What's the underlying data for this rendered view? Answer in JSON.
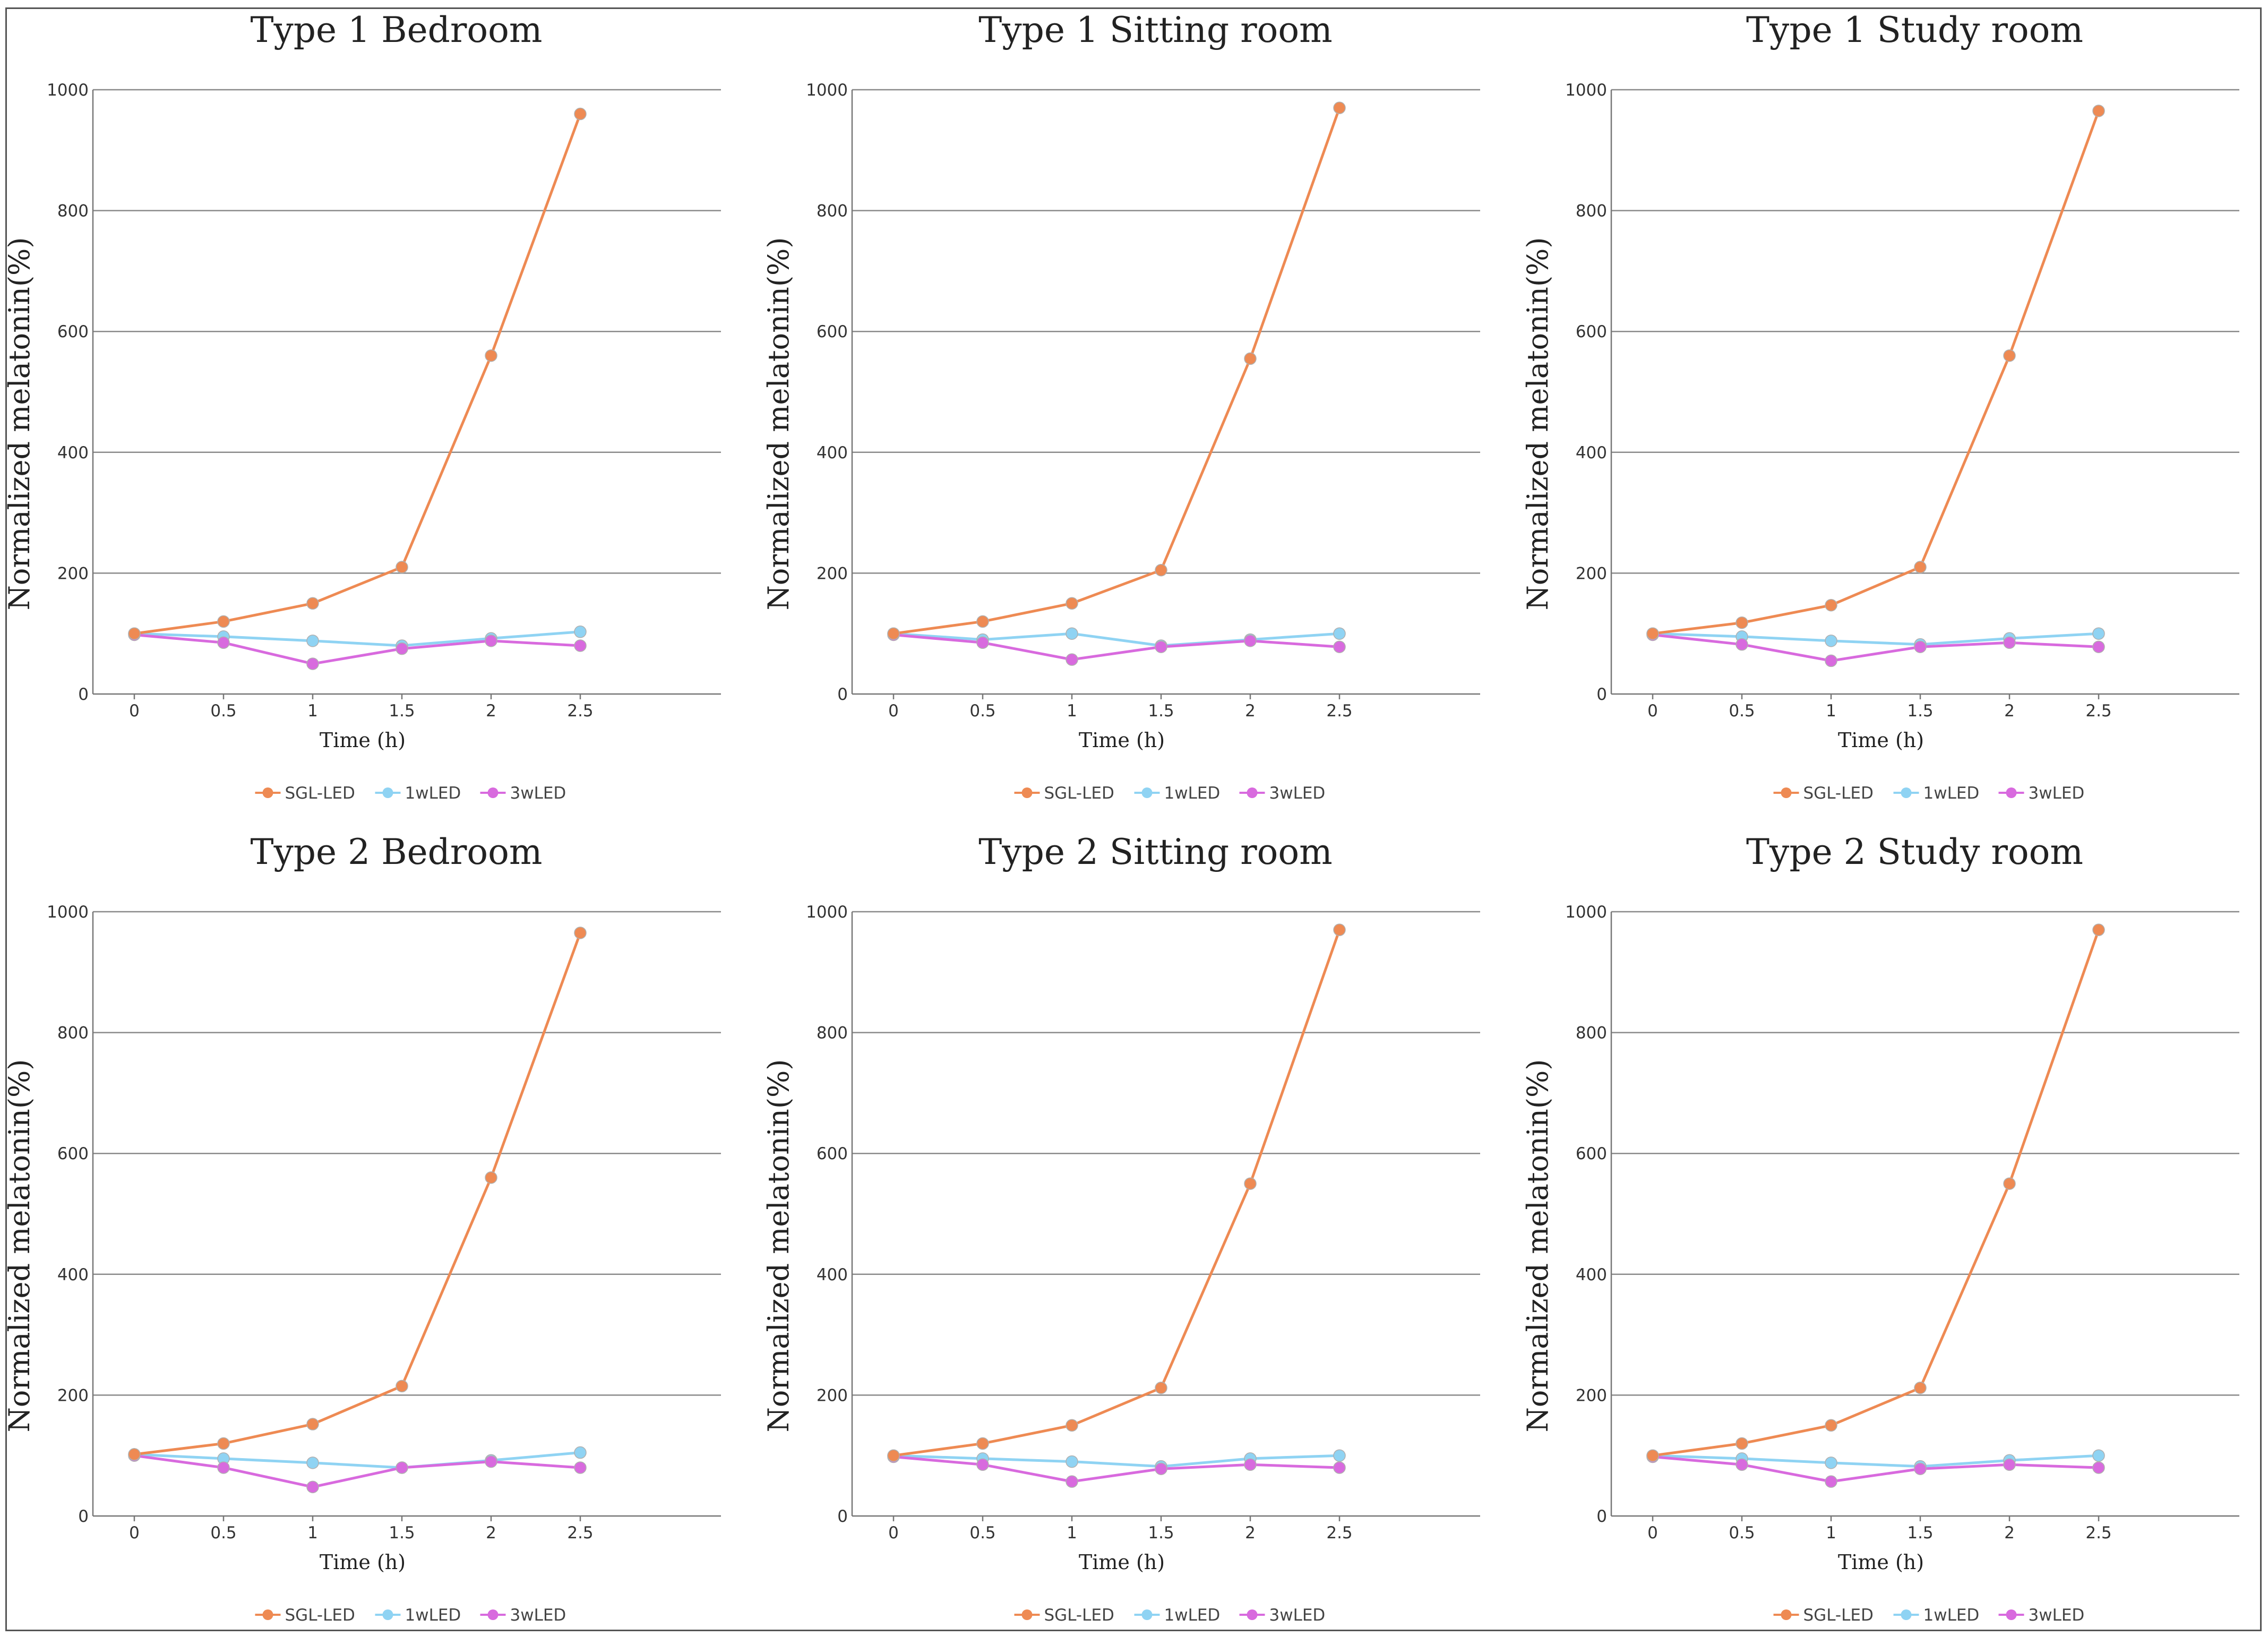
{
  "figure": {
    "panel_count": 6
  },
  "legend_labels": [
    "SGL-LED",
    "1wLED",
    "3wLED"
  ],
  "series_colors": {
    "SGL-LED": "#ee8a53",
    "1wLED": "#8fd3f3",
    "3wLED": "#d86ade"
  },
  "chart_data": [
    {
      "type": "line",
      "title": "Type 1 Bedroom",
      "xlabel": "Time (h)",
      "ylabel": "Normalized melatonin(%)",
      "x": [
        "0",
        "0.5",
        "1",
        "1.5",
        "2",
        "2.5"
      ],
      "yticks": [
        "0",
        "200",
        "400",
        "600",
        "800",
        "1000"
      ],
      "ylim": [
        0,
        1000
      ],
      "grid": true,
      "legend": "bottom",
      "series": [
        {
          "name": "SGL-LED",
          "color": "#ee8a53",
          "values": [
            100,
            120,
            150,
            210,
            560,
            960
          ]
        },
        {
          "name": "1wLED",
          "color": "#8fd3f3",
          "values": [
            100,
            95,
            88,
            80,
            92,
            103
          ]
        },
        {
          "name": "3wLED",
          "color": "#d86ade",
          "values": [
            98,
            85,
            50,
            75,
            88,
            80
          ]
        }
      ]
    },
    {
      "type": "line",
      "title": "Type 1 Sitting room",
      "xlabel": "Time (h)",
      "ylabel": "Normalized melatonin(%)",
      "x": [
        "0",
        "0.5",
        "1",
        "1.5",
        "2",
        "2.5"
      ],
      "yticks": [
        "0",
        "200",
        "400",
        "600",
        "800",
        "1000"
      ],
      "ylim": [
        0,
        1000
      ],
      "grid": true,
      "legend": "bottom",
      "series": [
        {
          "name": "SGL-LED",
          "color": "#ee8a53",
          "values": [
            100,
            120,
            150,
            205,
            555,
            970
          ]
        },
        {
          "name": "1wLED",
          "color": "#8fd3f3",
          "values": [
            100,
            90,
            100,
            80,
            90,
            100
          ]
        },
        {
          "name": "3wLED",
          "color": "#d86ade",
          "values": [
            98,
            85,
            57,
            78,
            88,
            78
          ]
        }
      ]
    },
    {
      "type": "line",
      "title": "Type 1 Study room",
      "xlabel": "Time (h)",
      "ylabel": "Normalized melatonin(%)",
      "x": [
        "0",
        "0.5",
        "1",
        "1.5",
        "2",
        "2.5"
      ],
      "yticks": [
        "0",
        "200",
        "400",
        "600",
        "800",
        "1000"
      ],
      "ylim": [
        0,
        1000
      ],
      "grid": true,
      "legend": "bottom",
      "series": [
        {
          "name": "SGL-LED",
          "color": "#ee8a53",
          "values": [
            100,
            118,
            147,
            210,
            560,
            965
          ]
        },
        {
          "name": "1wLED",
          "color": "#8fd3f3",
          "values": [
            100,
            95,
            88,
            82,
            92,
            100
          ]
        },
        {
          "name": "3wLED",
          "color": "#d86ade",
          "values": [
            98,
            82,
            55,
            78,
            85,
            78
          ]
        }
      ]
    },
    {
      "type": "line",
      "title": "Type 2 Bedroom",
      "xlabel": "Time (h)",
      "ylabel": "Normalized melatonin(%)",
      "x": [
        "0",
        "0.5",
        "1",
        "1.5",
        "2",
        "2.5"
      ],
      "yticks": [
        "0",
        "200",
        "400",
        "600",
        "800",
        "1000"
      ],
      "ylim": [
        0,
        1000
      ],
      "grid": true,
      "legend": "bottom",
      "series": [
        {
          "name": "SGL-LED",
          "color": "#ee8a53",
          "values": [
            102,
            120,
            152,
            215,
            560,
            965
          ]
        },
        {
          "name": "1wLED",
          "color": "#8fd3f3",
          "values": [
            102,
            95,
            88,
            80,
            92,
            105
          ]
        },
        {
          "name": "3wLED",
          "color": "#d86ade",
          "values": [
            100,
            80,
            48,
            80,
            90,
            80
          ]
        }
      ]
    },
    {
      "type": "line",
      "title": "Type 2 Sitting room",
      "xlabel": "Time (h)",
      "ylabel": "Normalized melatonin(%)",
      "x": [
        "0",
        "0.5",
        "1",
        "1.5",
        "2",
        "2.5"
      ],
      "yticks": [
        "0",
        "200",
        "400",
        "600",
        "800",
        "1000"
      ],
      "ylim": [
        0,
        1000
      ],
      "grid": true,
      "legend": "bottom",
      "series": [
        {
          "name": "SGL-LED",
          "color": "#ee8a53",
          "values": [
            100,
            120,
            150,
            212,
            550,
            970
          ]
        },
        {
          "name": "1wLED",
          "color": "#8fd3f3",
          "values": [
            100,
            95,
            90,
            82,
            95,
            100
          ]
        },
        {
          "name": "3wLED",
          "color": "#d86ade",
          "values": [
            98,
            85,
            57,
            78,
            85,
            80
          ]
        }
      ]
    },
    {
      "type": "line",
      "title": "Type 2 Study room",
      "xlabel": "Time (h)",
      "ylabel": "Normalized melatonin(%)",
      "x": [
        "0",
        "0.5",
        "1",
        "1.5",
        "2",
        "2.5"
      ],
      "yticks": [
        "0",
        "200",
        "400",
        "600",
        "800",
        "1000"
      ],
      "ylim": [
        0,
        1000
      ],
      "grid": true,
      "legend": "bottom",
      "series": [
        {
          "name": "SGL-LED",
          "color": "#ee8a53",
          "values": [
            100,
            120,
            150,
            212,
            550,
            970
          ]
        },
        {
          "name": "1wLED",
          "color": "#8fd3f3",
          "values": [
            100,
            95,
            88,
            82,
            92,
            100
          ]
        },
        {
          "name": "3wLED",
          "color": "#d86ade",
          "values": [
            98,
            85,
            57,
            78,
            85,
            80
          ]
        }
      ]
    }
  ]
}
